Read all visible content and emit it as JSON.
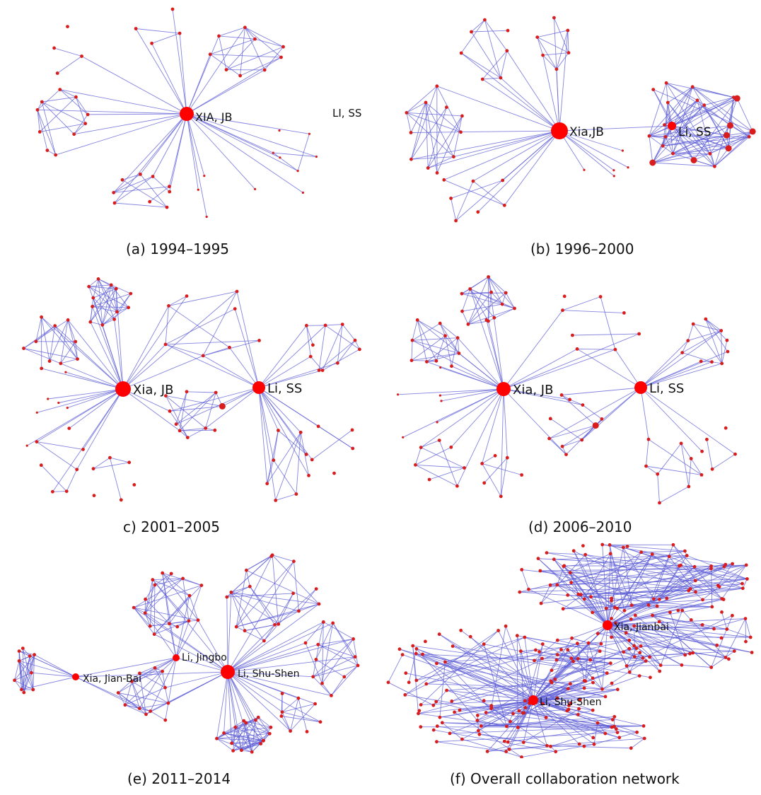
{
  "figure": {
    "panels": [
      {
        "id": "a",
        "caption": "(a) 1994–1995",
        "labels": [
          "XIA, JB",
          "LI, SS"
        ]
      },
      {
        "id": "b",
        "caption": "(b) 1996–2000",
        "labels": [
          "Xia,JB",
          "Li, SS"
        ]
      },
      {
        "id": "c",
        "caption": "c) 2001–2005",
        "labels": [
          "Xia, JB",
          "Li, SS"
        ]
      },
      {
        "id": "d",
        "caption": "(d) 2006–2010",
        "labels": [
          "Xia, JB",
          "Li, SS"
        ]
      },
      {
        "id": "e",
        "caption": "(e) 2011–2014",
        "labels": [
          "Xia, Jian-Bai",
          "Li, Jingbo",
          "Li, Shu-Shen"
        ]
      },
      {
        "id": "f",
        "caption": "(f) Overall collaboration network",
        "labels": [
          "Xia, Jianbai",
          "Li, Shu-Shen"
        ]
      }
    ],
    "colors": {
      "edge": "#5b5bd6",
      "node": "#d91c1c",
      "hub": "#ff0000"
    }
  }
}
